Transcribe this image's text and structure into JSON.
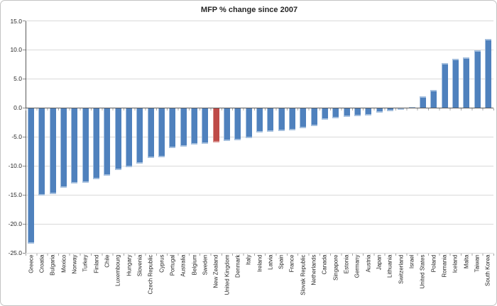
{
  "title": "MFP % change since 2007",
  "chart_data": {
    "type": "bar",
    "title": "MFP % change since 2007",
    "xlabel": "",
    "ylabel": "",
    "ylim": [
      -25,
      15
    ],
    "ytick_interval": 5,
    "yticks": [
      "15.0",
      "10.0",
      "5.0",
      "0.0",
      "-5.0",
      "-10.0",
      "-15.0",
      "-20.0",
      "-25.0"
    ],
    "ytick_values": [
      15,
      10,
      5,
      0,
      -5,
      -10,
      -15,
      -20,
      -25
    ],
    "grid": true,
    "legend": "none",
    "bar_color": "#4f81bd",
    "bar_edge_color": "#a4bfde",
    "highlight_category": "New Zealand",
    "highlight_color": "#be4b48",
    "highlight_edge_color": "#d8918e",
    "gridline_color": "#d9d9d9",
    "axis_color": "#595959",
    "categories": [
      "Greece",
      "Croatia",
      "Bulgaria",
      "Mexico",
      "Norway",
      "Turkey",
      "Finland",
      "Chile",
      "Luxembourg",
      "Hungary",
      "Slovenia",
      "Czech Republic",
      "Cyprus",
      "Portugal",
      "Australia",
      "Belgium",
      "Sweden",
      "New Zealand",
      "United Kingdom",
      "Denmark",
      "Italy",
      "Ireland",
      "Latvia",
      "Spain",
      "France",
      "Slovak Republic",
      "Netherlands",
      "Canada",
      "Singapore",
      "Estonia",
      "Germany",
      "Austria",
      "Japan",
      "Lithuania",
      "Switzerland",
      "Israel",
      "United States",
      "Poland",
      "Romania",
      "Iceland",
      "Malta",
      "Taiwan",
      "South Korea"
    ],
    "values": [
      -23.3,
      -15.1,
      -14.8,
      -13.7,
      -13.0,
      -12.8,
      -12.2,
      -11.6,
      -10.6,
      -10.2,
      -9.5,
      -8.6,
      -8.4,
      -6.9,
      -6.6,
      -6.3,
      -6.1,
      -5.9,
      -5.7,
      -5.5,
      -5.1,
      -4.2,
      -4.0,
      -3.9,
      -3.8,
      -3.4,
      -3.1,
      -2.0,
      -1.7,
      -1.5,
      -1.4,
      -1.3,
      -0.7,
      -0.5,
      -0.3,
      0.2,
      2.0,
      3.1,
      7.8,
      8.5,
      8.8,
      10.0,
      12.0
    ]
  }
}
